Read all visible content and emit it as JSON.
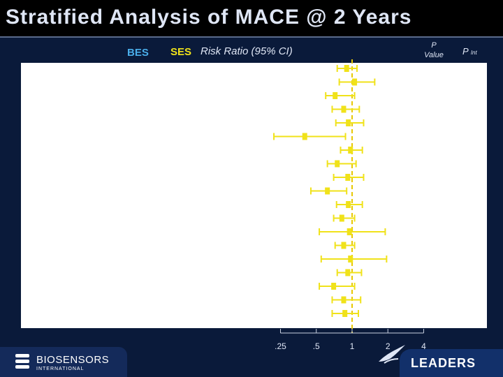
{
  "title": "Stratified Analysis of MACE @ 2 Years",
  "headers": {
    "bes": "BES",
    "ses": "SES",
    "risk_ratio": "Risk Ratio (95% CI)",
    "p_value_line1": "P",
    "p_value_line2": "Value",
    "p_int_main": "P",
    "p_int_sub": "Int"
  },
  "logos": {
    "left_name": "BIOSENSORS",
    "left_sub": "INTERNATIONAL",
    "right_name": "LEADERS"
  },
  "colors": {
    "background": "#0a1a3a",
    "bes": "#4aaeea",
    "ses": "#f0e21a",
    "marker": "#f0e21a",
    "reference_line": "#e8c800"
  },
  "chart_data": {
    "type": "forest",
    "x_scale": "log",
    "xlim": [
      0.2,
      5.5
    ],
    "reference_value": 1,
    "ticks": [
      {
        "value": 0.25,
        "label": ".25"
      },
      {
        "value": 0.5,
        "label": ".5"
      },
      {
        "value": 1,
        "label": "1"
      },
      {
        "value": 2,
        "label": "2"
      },
      {
        "value": 4,
        "label": "4"
      }
    ],
    "rows": [
      {
        "rr": 0.9,
        "lo": 0.75,
        "hi": 1.1
      },
      {
        "rr": 1.05,
        "lo": 0.78,
        "hi": 1.55
      },
      {
        "rr": 0.72,
        "lo": 0.6,
        "hi": 1.05
      },
      {
        "rr": 0.85,
        "lo": 0.68,
        "hi": 1.15
      },
      {
        "rr": 0.93,
        "lo": 0.73,
        "hi": 1.25
      },
      {
        "rr": 0.4,
        "lo": 0.22,
        "hi": 0.88
      },
      {
        "rr": 0.97,
        "lo": 0.8,
        "hi": 1.22
      },
      {
        "rr": 0.75,
        "lo": 0.62,
        "hi": 1.08
      },
      {
        "rr": 0.92,
        "lo": 0.7,
        "hi": 1.25
      },
      {
        "rr": 0.62,
        "lo": 0.45,
        "hi": 0.9
      },
      {
        "rr": 0.93,
        "lo": 0.74,
        "hi": 1.22
      },
      {
        "rr": 0.82,
        "lo": 0.7,
        "hi": 1.05
      },
      {
        "rr": 0.95,
        "lo": 0.53,
        "hi": 1.9
      },
      {
        "rr": 0.85,
        "lo": 0.72,
        "hi": 1.05
      },
      {
        "rr": 0.97,
        "lo": 0.55,
        "hi": 1.95
      },
      {
        "rr": 0.92,
        "lo": 0.75,
        "hi": 1.2
      },
      {
        "rr": 0.7,
        "lo": 0.53,
        "hi": 1.05
      },
      {
        "rr": 0.85,
        "lo": 0.68,
        "hi": 1.18
      },
      {
        "rr": 0.87,
        "lo": 0.68,
        "hi": 1.13
      }
    ]
  }
}
